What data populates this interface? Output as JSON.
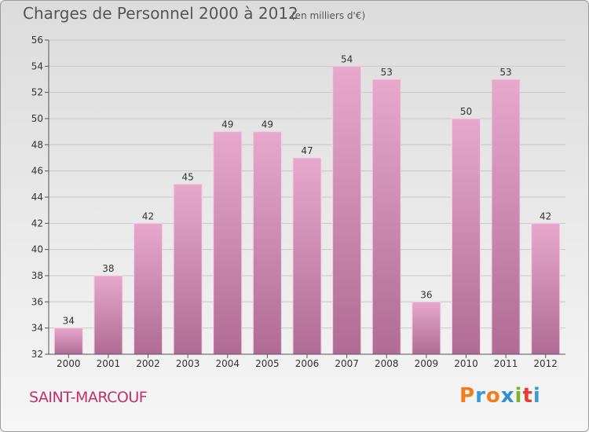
{
  "header": {
    "title": "Charges de Personnel 2000 à 2012",
    "unit": "(en milliers d'€)"
  },
  "footer": {
    "commune": "SAINT-MARCOUF",
    "brand": "Proxiti"
  },
  "colors": {
    "bar_top": "#e8a8cc",
    "bar_bottom": "#b06c94",
    "commune_text": "#c0306a",
    "brand_letters": [
      "#f07d1a",
      "#3a9ad9",
      "#f07d1a",
      "#2f8fd0",
      "#7ab428",
      "#e63b2e",
      "#3a9ad9"
    ]
  },
  "chart_data": {
    "type": "bar",
    "title": "Charges de Personnel 2000 à 2012",
    "subtitle": "(en milliers d'€)",
    "categories": [
      "2000",
      "2001",
      "2002",
      "2003",
      "2004",
      "2005",
      "2006",
      "2007",
      "2008",
      "2009",
      "2010",
      "2011",
      "2012"
    ],
    "values": [
      34,
      38,
      42,
      45,
      49,
      49,
      47,
      54,
      53,
      36,
      50,
      53,
      42
    ],
    "ylim": [
      32,
      56
    ],
    "yticks": [
      32,
      34,
      36,
      38,
      40,
      42,
      44,
      46,
      48,
      50,
      52,
      54,
      56
    ],
    "grid": true,
    "data_labels": true
  }
}
